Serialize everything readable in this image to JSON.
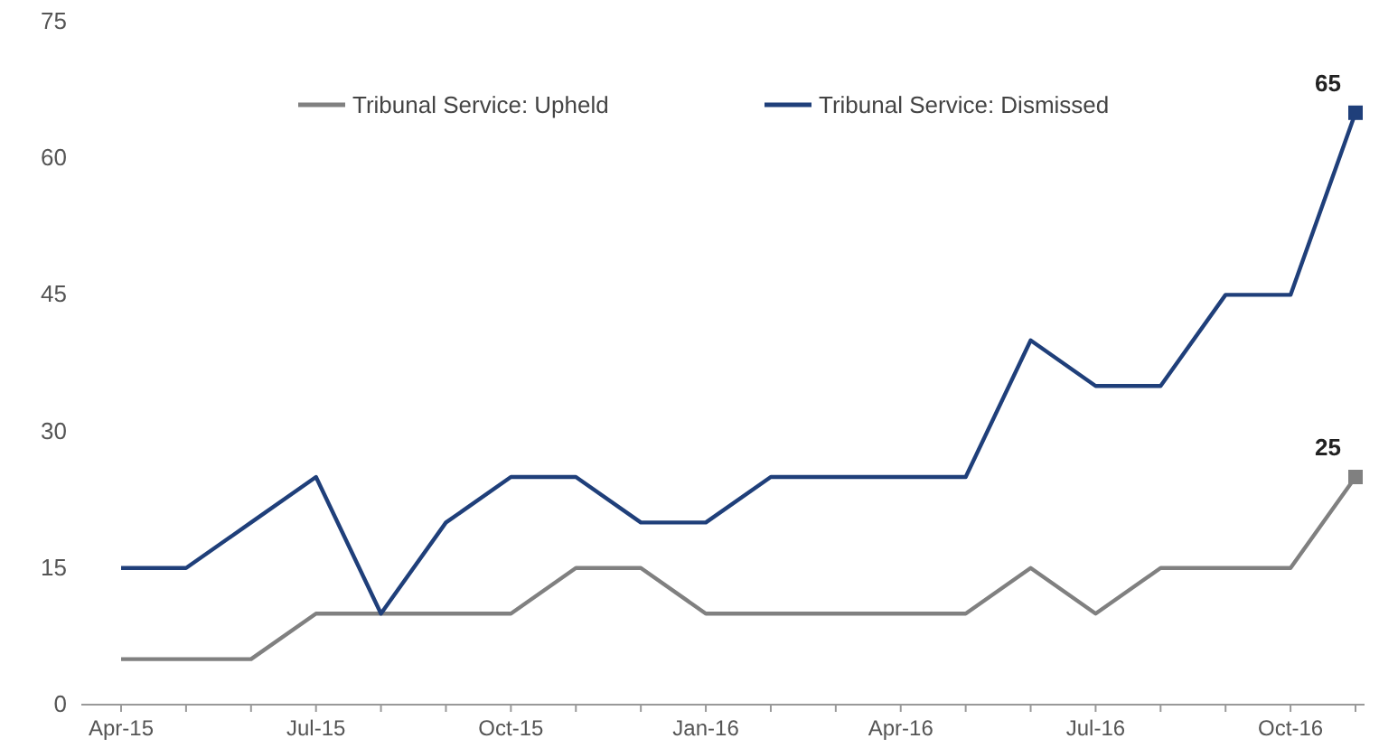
{
  "chart_data": {
    "type": "line",
    "categories": [
      "Apr-15",
      null,
      null,
      "Jul-15",
      null,
      null,
      "Oct-15",
      null,
      null,
      "Jan-16",
      null,
      null,
      "Apr-16",
      null,
      null,
      "Jul-16",
      null,
      null,
      "Oct-16",
      null
    ],
    "series": [
      {
        "name": "Tribunal Service: Upheld",
        "color": "#808080",
        "values": [
          5,
          5,
          5,
          10,
          10,
          10,
          10,
          15,
          15,
          10,
          10,
          10,
          10,
          10,
          15,
          10,
          15,
          15,
          15,
          25
        ],
        "value_labels": [
          null,
          null,
          null,
          null,
          null,
          null,
          null,
          null,
          null,
          null,
          null,
          null,
          null,
          null,
          null,
          null,
          null,
          null,
          null,
          "25"
        ]
      },
      {
        "name": "Tribunal Service: Dismissed",
        "color": "#1f3f7a",
        "values": [
          15,
          15,
          20,
          25,
          10,
          20,
          25,
          25,
          20,
          20,
          25,
          25,
          25,
          25,
          40,
          35,
          35,
          45,
          45,
          65
        ],
        "value_labels": [
          null,
          null,
          null,
          null,
          null,
          null,
          null,
          null,
          null,
          null,
          null,
          null,
          null,
          null,
          null,
          null,
          null,
          null,
          null,
          "65"
        ]
      }
    ],
    "ylim": [
      0,
      75
    ],
    "yticks": [
      0,
      15,
      30,
      45,
      60,
      75
    ],
    "grid": false,
    "legend": "top",
    "marker": "none",
    "line_style": "solid"
  }
}
